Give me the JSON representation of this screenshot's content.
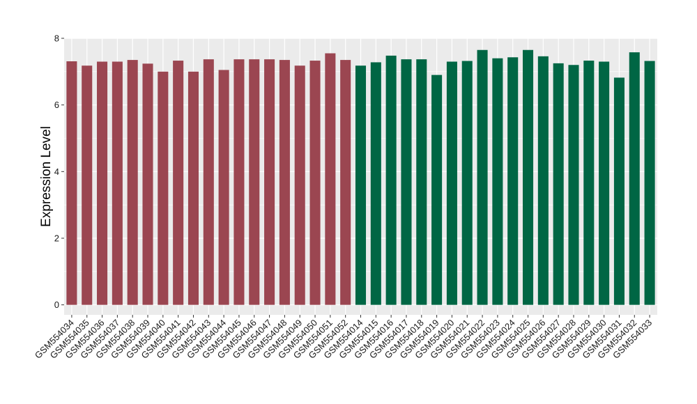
{
  "chart_data": {
    "type": "bar",
    "title": "",
    "xlabel": "",
    "ylabel": "Expression Level",
    "ylim": [
      -0.3,
      8.0
    ],
    "yticks": [
      0,
      2,
      4,
      6,
      8
    ],
    "grid": true,
    "legend": "none",
    "panel_background": "#ebebeb",
    "gridline_color": "#ffffff",
    "group_colors": {
      "group1": "#9b4651",
      "group2": "#006644"
    },
    "categories": [
      "GSM554034",
      "GSM554035",
      "GSM554036",
      "GSM554037",
      "GSM554038",
      "GSM554039",
      "GSM554040",
      "GSM554041",
      "GSM554042",
      "GSM554043",
      "GSM554044",
      "GSM554045",
      "GSM554046",
      "GSM554047",
      "GSM554048",
      "GSM554049",
      "GSM554050",
      "GSM554051",
      "GSM554052",
      "GSM554014",
      "GSM554015",
      "GSM554016",
      "GSM554017",
      "GSM554018",
      "GSM554019",
      "GSM554020",
      "GSM554021",
      "GSM554022",
      "GSM554023",
      "GSM554024",
      "GSM554025",
      "GSM554026",
      "GSM554027",
      "GSM554028",
      "GSM554029",
      "GSM554030",
      "GSM554031",
      "GSM554032",
      "GSM554033"
    ],
    "values": [
      7.31,
      7.18,
      7.3,
      7.3,
      7.35,
      7.24,
      7.0,
      7.33,
      7.0,
      7.37,
      7.05,
      7.37,
      7.37,
      7.37,
      7.35,
      7.18,
      7.33,
      7.55,
      7.35,
      7.18,
      7.28,
      7.48,
      7.37,
      7.37,
      6.9,
      7.3,
      7.32,
      7.65,
      7.4,
      7.43,
      7.65,
      7.46,
      7.25,
      7.2,
      7.33,
      7.3,
      6.82,
      7.58,
      7.32
    ],
    "groups": [
      "group1",
      "group1",
      "group1",
      "group1",
      "group1",
      "group1",
      "group1",
      "group1",
      "group1",
      "group1",
      "group1",
      "group1",
      "group1",
      "group1",
      "group1",
      "group1",
      "group1",
      "group1",
      "group1",
      "group2",
      "group2",
      "group2",
      "group2",
      "group2",
      "group2",
      "group2",
      "group2",
      "group2",
      "group2",
      "group2",
      "group2",
      "group2",
      "group2",
      "group2",
      "group2",
      "group2",
      "group2",
      "group2",
      "group2"
    ]
  }
}
